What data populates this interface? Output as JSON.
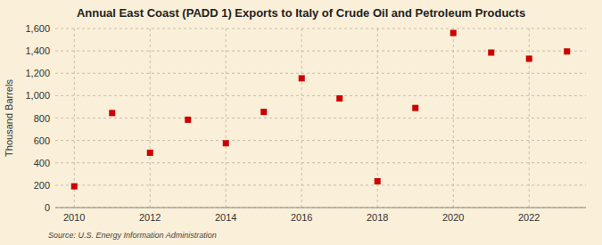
{
  "chart_data": {
    "type": "scatter",
    "title": "Annual East Coast (PADD 1) Exports to Italy of Crude Oil and Petroleum Products",
    "y_label": "Thousand Barrels",
    "source": "Source: U.S. Energy Information Administration",
    "x": [
      2010,
      2011,
      2012,
      2013,
      2014,
      2015,
      2016,
      2017,
      2018,
      2019,
      2020,
      2021,
      2022,
      2023
    ],
    "values": [
      190,
      845,
      490,
      785,
      575,
      855,
      1155,
      975,
      235,
      890,
      1560,
      1385,
      1330,
      1395
    ],
    "color": "#cc0000",
    "marker": "square",
    "xlim": [
      2009.5,
      2023.5
    ],
    "xticks": [
      2010,
      2012,
      2014,
      2016,
      2018,
      2020,
      2022
    ],
    "ylim": [
      0,
      1600
    ],
    "yticks": [
      0,
      200,
      400,
      600,
      800,
      {
        "value": 1000,
        "label": "1,000"
      },
      {
        "value": 1200,
        "label": "1,200"
      },
      {
        "value": 1400,
        "label": "1,400"
      },
      {
        "value": 1600,
        "label": "1,600"
      }
    ],
    "grid": true
  }
}
